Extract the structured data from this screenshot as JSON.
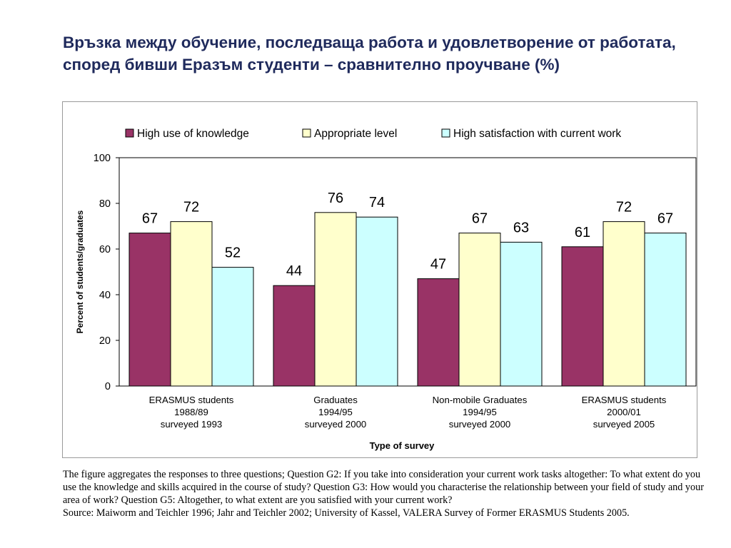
{
  "title": "Връзка между обучение, последваща работа и удовлетворение от работата, според бивши Еразъм студенти – сравнително проучване (%)",
  "caption": {
    "description": "The figure aggregates the responses to three questions; Question G2: If you take into consideration your current work tasks altogether: To what extent do you use the knowledge and skills acquired in the course of study? Question G3: How would you characterise the relationship between your field of study and your area of work? Question G5: Altogether, to what extent are you satisfied with your current work?",
    "source": "Source: Maiworm and Teichler 1996; Jahr and Teichler 2002; University of Kassel, VALERA Survey of Former ERASMUS Students 2005."
  },
  "chart_data": {
    "type": "bar",
    "title": "",
    "xlabel": "Type of survey",
    "ylabel": "Percent of students/graduates",
    "ylim": [
      0,
      100
    ],
    "yticks": [
      0,
      20,
      40,
      60,
      80,
      100
    ],
    "grid": false,
    "legend_position": "top",
    "categories": [
      [
        "ERASMUS students",
        "1988/89",
        "surveyed 1993"
      ],
      [
        "Graduates",
        "1994/95",
        "surveyed 2000"
      ],
      [
        "Non-mobile Graduates",
        "1994/95",
        "surveyed 2000"
      ],
      [
        "ERASMUS students",
        "2000/01",
        "surveyed 2005"
      ]
    ],
    "series": [
      {
        "name": "High use of knowledge",
        "color": "#993366",
        "values": [
          67,
          44,
          47,
          61
        ]
      },
      {
        "name": "Appropriate level",
        "color": "#ffffcc",
        "values": [
          72,
          76,
          67,
          72
        ]
      },
      {
        "name": "High satisfaction with current work",
        "color": "#ccffff",
        "values": [
          52,
          74,
          63,
          67
        ]
      }
    ]
  }
}
